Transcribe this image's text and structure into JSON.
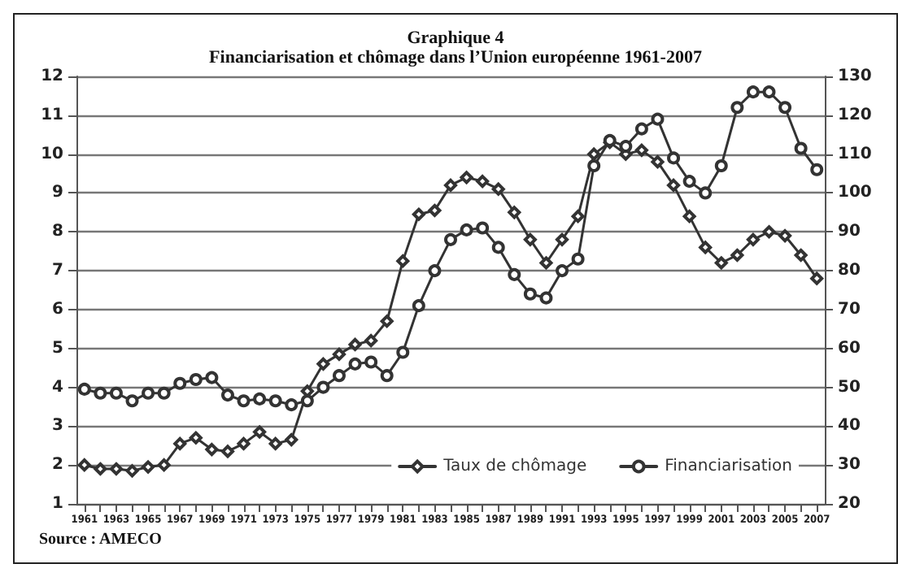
{
  "chart_data": {
    "type": "line",
    "title": "Graphique 4",
    "subtitle": "Financiarisation et chômage dans l’Union européenne 1961-2007",
    "categories": [
      "1961",
      null,
      "1963",
      null,
      "1965",
      null,
      "1967",
      null,
      "1969",
      null,
      "1971",
      null,
      "1973",
      null,
      "1975",
      null,
      "1977",
      null,
      "1979",
      null,
      "1981",
      null,
      "1983",
      null,
      "1985",
      null,
      "1987",
      null,
      "1989",
      null,
      "1991",
      null,
      "1993",
      null,
      "1995",
      null,
      "1997",
      null,
      "1999",
      null,
      "2001",
      null,
      "2003",
      null,
      "2005",
      null,
      "2007"
    ],
    "series": [
      {
        "name": "Taux de chômage",
        "color": "#333333",
        "marker": "diamond",
        "values": [
          2.0,
          1.9,
          1.9,
          1.85,
          1.95,
          2.0,
          2.55,
          2.7,
          2.4,
          2.35,
          2.55,
          2.85,
          2.55,
          2.65,
          3.9,
          4.6,
          4.85,
          5.1,
          5.2,
          5.7,
          7.25,
          8.45,
          8.55,
          9.2,
          9.4,
          9.3,
          9.1,
          8.5,
          7.8,
          7.2,
          7.8,
          8.4,
          10.0,
          10.3,
          10.0,
          10.1,
          9.8,
          9.2,
          8.4,
          7.6,
          7.2,
          7.4,
          7.8,
          8.0,
          7.9,
          7.4,
          6.8
        ]
      },
      {
        "name": "Financiarisation",
        "color": "#333333",
        "marker": "circle",
        "axis": "y2",
        "values": [
          49.5,
          48.5,
          48.5,
          46.5,
          48.5,
          48.5,
          51,
          52,
          52.5,
          48,
          46.5,
          47,
          46.5,
          45.5,
          46.5,
          50,
          53,
          56,
          56.5,
          53,
          59,
          71,
          80,
          88,
          90.5,
          91,
          86,
          79,
          74,
          73,
          80,
          83,
          107,
          113.5,
          112,
          116.5,
          119,
          109,
          103,
          100,
          107,
          122,
          126,
          126,
          122,
          111.5,
          106
        ]
      }
    ],
    "ylim": [
      1,
      12
    ],
    "yticks": [
      1,
      2,
      3,
      4,
      5,
      6,
      7,
      8,
      9,
      10,
      11,
      12
    ],
    "y2lim": [
      20,
      130
    ],
    "y2ticks": [
      20,
      30,
      40,
      50,
      60,
      70,
      80,
      90,
      100,
      110,
      120,
      130
    ],
    "grid": "y",
    "legend": "bottom right",
    "line_style": "solid",
    "annotations": [
      "Source : AMECO"
    ]
  }
}
